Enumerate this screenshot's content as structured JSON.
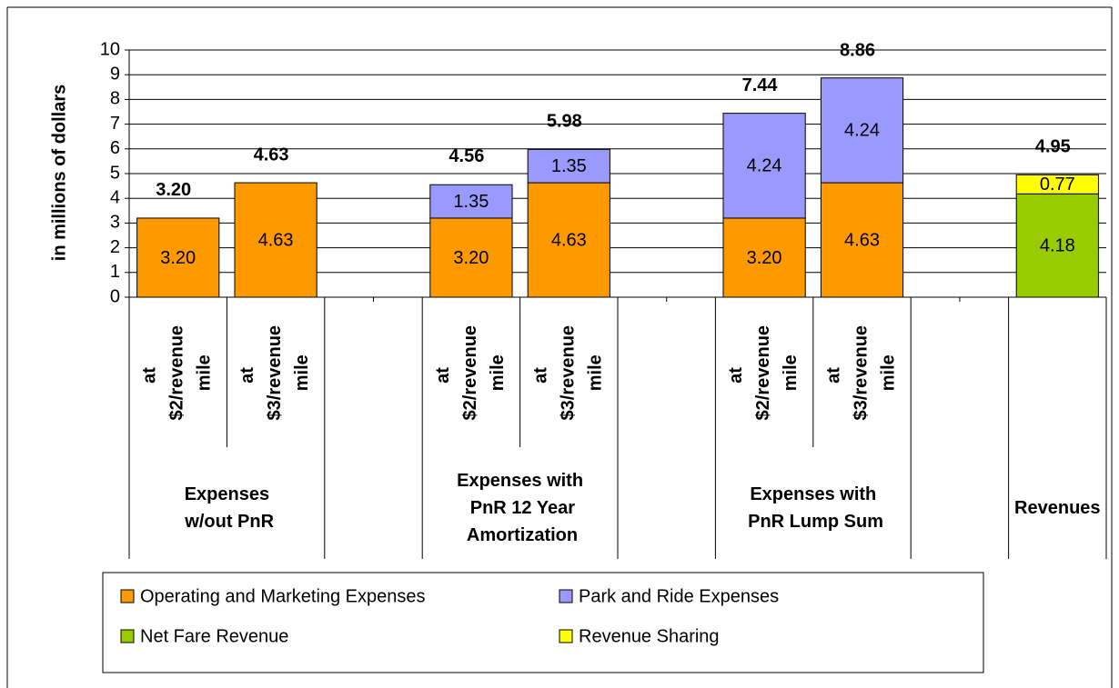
{
  "chart_data": {
    "type": "bar",
    "stacked": true,
    "ylabel": "in millions of dollars",
    "groups": [
      {
        "name": "Expenses w/out PnR",
        "categories": [
          "at $2/revenue mile",
          "at $3/revenue mile"
        ]
      },
      {
        "name": "Expenses with PnR 12 Year Amortization",
        "categories": [
          "at $2/revenue mile",
          "at $3/revenue mile"
        ]
      },
      {
        "name": "Expenses with PnR Lump Sum",
        "categories": [
          "at $2/revenue mile",
          "at $3/revenue mile"
        ]
      },
      {
        "name": "Revenues",
        "categories": [
          null
        ]
      }
    ],
    "series": [
      {
        "name": "Operating and Marketing Expenses",
        "color": "#FF9900",
        "values": [
          3.2,
          4.63,
          3.2,
          4.63,
          3.2,
          4.63,
          null
        ],
        "value_labels": [
          "3.20",
          "4.63",
          "3.20",
          "4.63",
          "3.20",
          "4.63",
          null
        ]
      },
      {
        "name": "Park and Ride Expenses",
        "color": "#9999FF",
        "values": [
          null,
          null,
          1.35,
          1.35,
          4.24,
          4.24,
          null
        ],
        "value_labels": [
          null,
          null,
          "1.35",
          "1.35",
          "4.24",
          "4.24",
          null
        ]
      },
      {
        "name": "Net Fare Revenue",
        "color": "#99CC00",
        "values": [
          null,
          null,
          null,
          null,
          null,
          null,
          4.18
        ],
        "value_labels": [
          null,
          null,
          null,
          null,
          null,
          null,
          "4.18"
        ]
      },
      {
        "name": "Revenue Sharing",
        "color": "#FFFF00",
        "values": [
          null,
          null,
          null,
          null,
          null,
          null,
          0.77
        ],
        "value_labels": [
          null,
          null,
          null,
          null,
          null,
          null,
          "0.77"
        ]
      }
    ],
    "totals": [
      3.2,
      4.63,
      4.56,
      5.98,
      7.44,
      8.86,
      4.95
    ],
    "total_labels": [
      "3.20",
      "4.63",
      "4.56",
      "5.98",
      "7.44",
      "8.86",
      "4.95"
    ],
    "ylim": [
      0,
      10
    ],
    "yticks": [
      0,
      1,
      2,
      3,
      4,
      5,
      6,
      7,
      8,
      9,
      10
    ],
    "grid": true,
    "legend": "bottom"
  }
}
